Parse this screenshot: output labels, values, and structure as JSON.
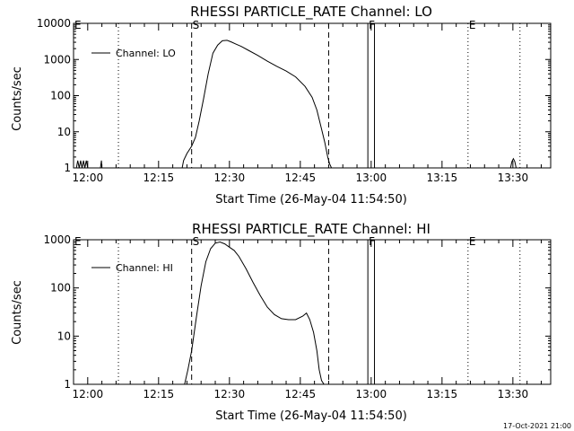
{
  "footer": {
    "timestamp": "17-Oct-2021 21:00"
  },
  "chart_data": [
    {
      "type": "line",
      "title": "RHESSI PARTICLE_RATE Channel: LO",
      "xlabel": "Start Time (26-May-04 11:54:50)",
      "ylabel": "Counts/sec",
      "y_scale": "log",
      "ylim": [
        1,
        10000
      ],
      "y_tick_labels": [
        "1",
        "10",
        "100",
        "1000",
        "10000"
      ],
      "y_tick_values": [
        1,
        10,
        100,
        1000,
        10000
      ],
      "xlim_minutes": [
        -3.0,
        98.0
      ],
      "x_tick_labels": [
        "12:00",
        "12:15",
        "12:30",
        "12:45",
        "13:00",
        "13:15",
        "13:30"
      ],
      "x_tick_minutes": [
        0,
        15,
        30,
        45,
        60,
        75,
        90
      ],
      "legend": {
        "position": "top-left",
        "label": "Channel: LO"
      },
      "markers": [
        {
          "label": "E",
          "minute": -3.5,
          "style": "dotted"
        },
        {
          "label": "",
          "minute": 6.5,
          "style": "dotted"
        },
        {
          "label": "S",
          "minute": 22.0,
          "style": "dashed"
        },
        {
          "label": "",
          "minute": 51.0,
          "style": "dashed"
        },
        {
          "label": "F",
          "minute": 59.3,
          "style": "solid"
        },
        {
          "label": "",
          "minute": 60.7,
          "style": "solid"
        },
        {
          "label": "E",
          "minute": 80.5,
          "style": "dotted"
        },
        {
          "label": "",
          "minute": 91.5,
          "style": "dotted"
        }
      ],
      "series": [
        {
          "name": "Channel: LO",
          "x": [
            -3.0,
            -2.4,
            -2.1,
            -1.8,
            -1.5,
            -1.2,
            -0.9,
            -0.6,
            -0.3,
            0,
            0.3,
            0.6,
            0.9,
            1.2,
            1.5,
            1.8,
            2.1,
            2.4,
            2.7,
            2.9,
            3.0,
            20.0,
            20.3,
            21.0,
            22.0,
            22.8,
            23.6,
            24.5,
            25.5,
            26.5,
            27.5,
            28.5,
            29.5,
            30.5,
            31.3,
            32.5,
            34.0,
            36.0,
            38.0,
            40.0,
            42.0,
            44.0,
            46.0,
            47.5,
            48.5,
            49.5,
            50.2,
            50.8,
            51.2,
            51.6,
            51.8,
            89.5,
            89.8,
            90.1,
            90.4,
            90.7,
            98.0
          ],
          "y": [
            1,
            1,
            1.6,
            1,
            1.6,
            1,
            1.6,
            1,
            1.6,
            1,
            1,
            1,
            1,
            1,
            1,
            1,
            1,
            1,
            1,
            1.6,
            1,
            1,
            1.6,
            2.5,
            4,
            7,
            20,
            80,
            400,
            1500,
            2500,
            3300,
            3400,
            3000,
            2700,
            2300,
            1800,
            1300,
            900,
            650,
            480,
            330,
            180,
            90,
            40,
            12,
            5,
            2,
            1.3,
            1,
            1,
            1,
            1.5,
            1.8,
            1.5,
            1,
            1
          ]
        }
      ]
    },
    {
      "type": "line",
      "title": "RHESSI PARTICLE_RATE Channel: HI",
      "xlabel": "Start Time (26-May-04 11:54:50)",
      "ylabel": "Counts/sec",
      "y_scale": "log",
      "ylim": [
        1,
        1000
      ],
      "y_tick_labels": [
        "1",
        "10",
        "100",
        "1000"
      ],
      "y_tick_values": [
        1,
        10,
        100,
        1000
      ],
      "xlim_minutes": [
        -3.0,
        98.0
      ],
      "x_tick_labels": [
        "12:00",
        "12:15",
        "12:30",
        "12:45",
        "13:00",
        "13:15",
        "13:30"
      ],
      "x_tick_minutes": [
        0,
        15,
        30,
        45,
        60,
        75,
        90
      ],
      "legend": {
        "position": "top-left",
        "label": "Channel: HI"
      },
      "markers": [
        {
          "label": "E",
          "minute": -3.5,
          "style": "dotted"
        },
        {
          "label": "",
          "minute": 6.5,
          "style": "dotted"
        },
        {
          "label": "S",
          "minute": 22.0,
          "style": "dashed"
        },
        {
          "label": "",
          "minute": 51.0,
          "style": "dashed"
        },
        {
          "label": "F",
          "minute": 59.3,
          "style": "solid"
        },
        {
          "label": "",
          "minute": 60.7,
          "style": "solid"
        },
        {
          "label": "E",
          "minute": 80.5,
          "style": "dotted"
        },
        {
          "label": "",
          "minute": 91.5,
          "style": "dotted"
        }
      ],
      "series": [
        {
          "name": "Channel: HI",
          "x": [
            20.5,
            21.2,
            22.0,
            23.0,
            24.0,
            25.0,
            26.0,
            27.0,
            28.0,
            29.0,
            30.0,
            31.0,
            32.0,
            33.5,
            35.0,
            36.5,
            38.0,
            39.5,
            41.0,
            42.5,
            44.0,
            45.5,
            46.3,
            47.0,
            47.8,
            48.5,
            49.0,
            49.5,
            50.0
          ],
          "y": [
            1,
            2,
            5,
            25,
            110,
            350,
            650,
            850,
            900,
            820,
            700,
            600,
            450,
            250,
            130,
            70,
            40,
            28,
            23,
            22,
            22,
            26,
            30,
            22,
            12,
            5,
            2,
            1.2,
            1
          ]
        }
      ]
    }
  ]
}
